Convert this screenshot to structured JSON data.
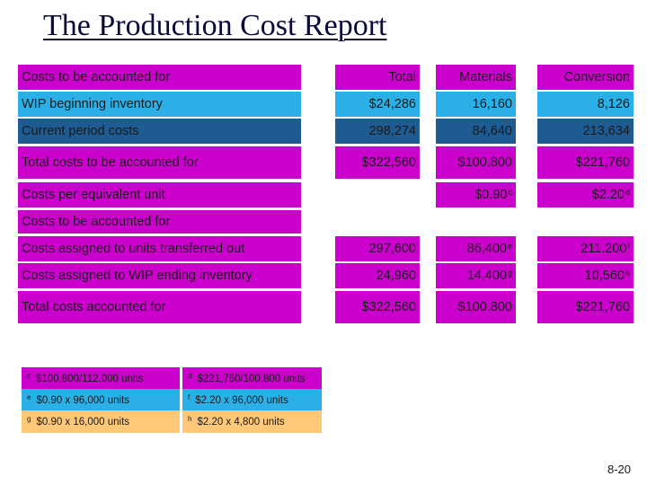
{
  "title": "The Production Cost Report",
  "header": {
    "label": "Costs to be accounted for",
    "total": "Total",
    "materials": "Materials",
    "conversion": "Conversion"
  },
  "rows": {
    "wip": {
      "label": "WIP beginning inventory",
      "total": "$24,286",
      "materials": "16,160",
      "conversion": "8,126"
    },
    "current": {
      "label": "Current period costs",
      "total": "298,274",
      "materials": "84,640",
      "conversion": "213,634"
    },
    "total_costs": {
      "label": "Total costs to be accounted for",
      "total": "$322,560",
      "materials": "$100,800",
      "conversion": "$221,760"
    },
    "per_unit": {
      "label": "Costs per equivalent unit",
      "materials": "$0.90",
      "materials_sup": "c",
      "conversion": "$2.20",
      "conversion_sup": "d"
    },
    "section2": {
      "label": "Costs to be accounted for"
    },
    "transferred": {
      "label": "Costs assigned to units transferred out",
      "total": "297,600",
      "materials": "86,400",
      "materials_sup": "e",
      "conversion": "211,200",
      "conversion_sup": "f"
    },
    "wip_end": {
      "label": "Costs assigned to WIP ending inventory",
      "total": "24,960",
      "materials": "14,400",
      "materials_sup": "g",
      "conversion": "10,560",
      "conversion_sup": "h"
    },
    "total_accounted": {
      "label": "Total costs accounted for",
      "total": "$322,560",
      "materials": "$100,800",
      "conversion": "$221,760"
    }
  },
  "notes": {
    "c": {
      "mark": "c",
      "text": "$100,800/112,000 units"
    },
    "d": {
      "mark": "d",
      "text": "$221,760/100,800 units"
    },
    "e": {
      "mark": "e",
      "text": "$0.90 x 96,000 units"
    },
    "f": {
      "mark": "f",
      "text": "$2.20 x 96,000 units"
    },
    "g": {
      "mark": "g",
      "text": "$0.90 x 16,000 units"
    },
    "h": {
      "mark": "h",
      "text": "$2.20 x 4,800 units"
    }
  },
  "page_number": "8-20",
  "colors": {
    "magenta": "#cc00cc",
    "cyan": "#2ab0e6",
    "navy": "#1f5b93",
    "beige": "#ffc878"
  }
}
